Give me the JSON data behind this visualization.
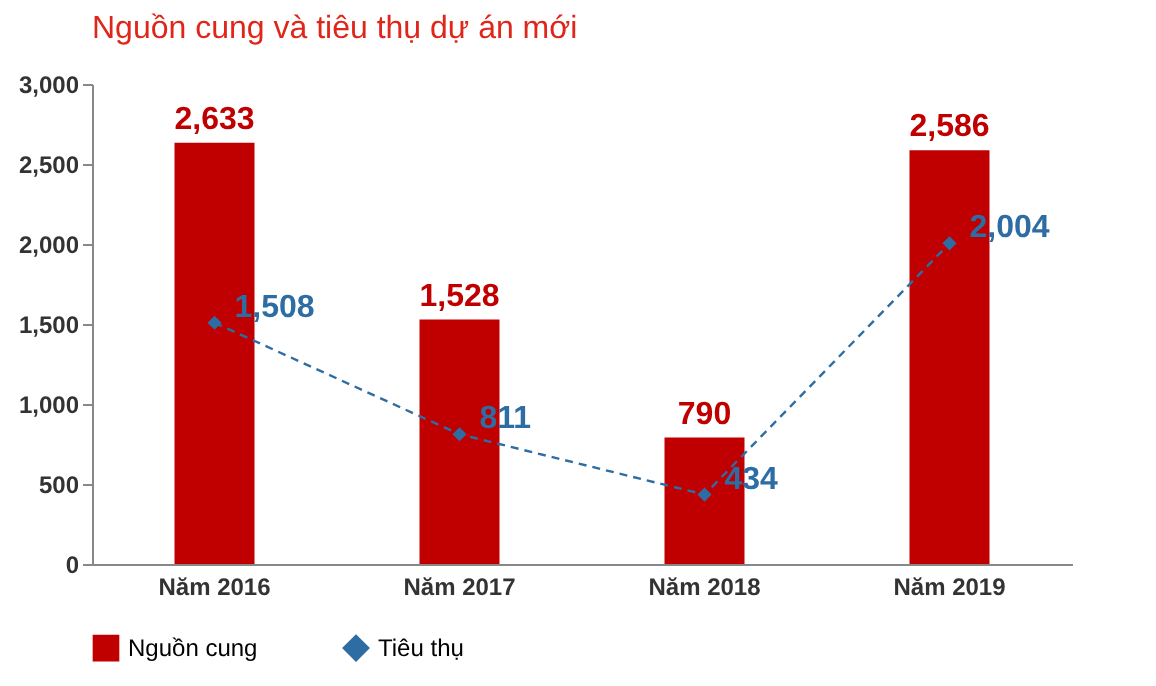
{
  "chart_data": {
    "type": "bar",
    "title": "Nguồn cung và tiêu thụ dự án mới",
    "categories": [
      "Năm 2016",
      "Năm 2017",
      "Năm 2018",
      "Năm 2019"
    ],
    "series": [
      {
        "name": "Nguồn cung",
        "color": "#c00000",
        "values": [
          2633,
          1528,
          790,
          2586
        ],
        "value_labels": [
          "2,633",
          "1,528",
          "790",
          "2,586"
        ]
      },
      {
        "name": "Tiêu thụ",
        "type": "line",
        "color": "#2e6da4",
        "line_style": "dashed",
        "marker": "diamond",
        "values": [
          1508,
          811,
          434,
          2004
        ],
        "value_labels": [
          "1,508",
          "811",
          "434",
          "2,004"
        ]
      }
    ],
    "ylim": [
      0,
      3000
    ],
    "yticks": [
      {
        "value": 0,
        "label": "0"
      },
      {
        "value": 500,
        "label": "500"
      },
      {
        "value": 1000,
        "label": "1,000"
      },
      {
        "value": 1500,
        "label": "1,500"
      },
      {
        "value": 2000,
        "label": "2,000"
      },
      {
        "value": 2500,
        "label": "2,500"
      },
      {
        "value": 3000,
        "label": "3,000"
      }
    ],
    "legend": "bottom"
  }
}
